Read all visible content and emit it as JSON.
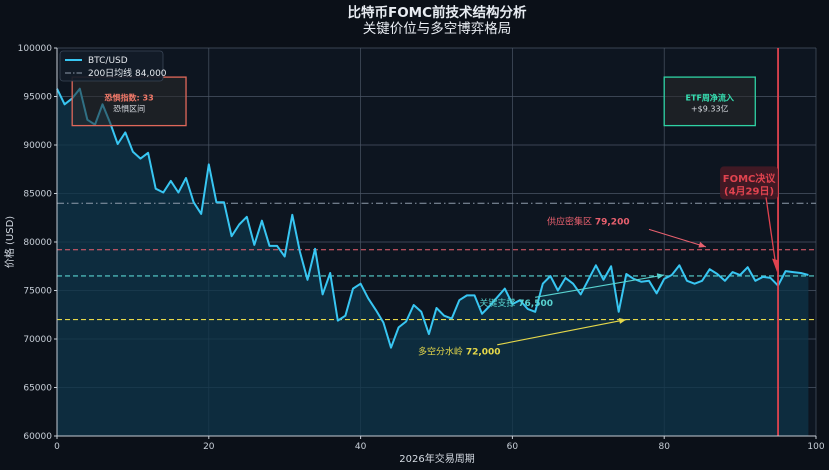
{
  "chart_data": {
    "type": "line",
    "title": "比特币FOMC前技术结构分析",
    "subtitle": "关键价位与多空博弈格局",
    "xlabel": "2026年交易周期",
    "ylabel": "价格 (USD)",
    "xlim": [
      0,
      100
    ],
    "ylim": [
      60000,
      100000
    ],
    "x_ticks": [
      0,
      20,
      40,
      60,
      80,
      100
    ],
    "y_ticks": [
      60000,
      65000,
      70000,
      75000,
      80000,
      85000,
      90000,
      95000,
      100000
    ],
    "grid": true,
    "legend_position": "top-left",
    "series": [
      {
        "name": "BTC/USD",
        "color": "#38c6f2",
        "x": [
          0,
          1,
          2,
          3,
          4,
          5,
          6,
          7,
          8,
          9,
          10,
          11,
          12,
          13,
          14,
          15,
          16,
          17,
          18,
          19,
          20,
          21,
          22,
          23,
          24,
          25,
          26,
          27,
          28,
          29,
          30,
          31,
          32,
          33,
          34,
          35,
          36,
          37,
          38,
          39,
          40,
          41,
          42,
          43,
          44,
          45,
          46,
          47,
          48,
          49,
          50,
          51,
          52,
          53,
          54,
          55,
          56,
          57,
          58,
          59,
          60,
          61,
          62,
          63,
          64,
          65,
          66,
          67,
          68,
          69,
          70,
          71,
          72,
          73,
          74,
          75,
          76,
          77,
          78,
          79,
          80,
          81,
          82,
          83,
          84,
          85,
          86,
          87,
          88,
          89,
          90,
          91,
          92,
          93,
          94,
          95,
          96,
          97,
          98,
          99
        ],
        "values": [
          95800,
          94200,
          94800,
          95800,
          92600,
          92100,
          94200,
          92300,
          90100,
          91300,
          89300,
          88600,
          89200,
          85500,
          85100,
          86300,
          85100,
          86600,
          84100,
          82900,
          88000,
          84100,
          84100,
          80600,
          81800,
          82600,
          79700,
          82200,
          79600,
          79600,
          78500,
          82800,
          79000,
          76100,
          79300,
          74600,
          76800,
          71900,
          72400,
          75200,
          75700,
          74200,
          73000,
          71700,
          69100,
          71200,
          71800,
          73500,
          72800,
          70500,
          73200,
          72400,
          72100,
          74000,
          74500,
          74500,
          72600,
          73400,
          74300,
          75200,
          73600,
          74000,
          73100,
          72800,
          75700,
          76500,
          75000,
          76300,
          75700,
          74600,
          76100,
          77600,
          76100,
          77500,
          72800,
          76700,
          76200,
          75900,
          76000,
          74700,
          76200,
          76600,
          77600,
          76000,
          75700,
          76000,
          77200,
          76700,
          76000,
          76900,
          76600,
          77400,
          76000,
          76400,
          76300,
          75500,
          77000,
          76900,
          76800,
          76600
        ]
      }
    ],
    "ma_200": {
      "label": "200日均线 84,000",
      "value": 84000,
      "color": "#8f9bab"
    },
    "levels": [
      {
        "value": 79200,
        "color": "#e8606e",
        "label": "供应密集区",
        "value_label": "79,200"
      },
      {
        "value": 76500,
        "color": "#58d3d0",
        "label": "关键支撑",
        "value_label": "76,500"
      },
      {
        "value": 72000,
        "color": "#e5d84a",
        "label": "多空分水岭",
        "value_label": "72,000"
      }
    ],
    "fomc": {
      "x": 95,
      "label_line1": "FOMC决议",
      "label_line2": "(4月29日)",
      "color": "#e0434f"
    },
    "boxes": [
      {
        "line1": "恐惧指数: 33",
        "line2": "恐惧区间",
        "border": "#e0685a",
        "line1_color": "#f07868",
        "line2_color": "#d8dce2"
      },
      {
        "line1": "ETF周净流入",
        "line2": "+$9.33亿",
        "border": "#2fd2a4",
        "line1_color": "#36e0b2",
        "line2_color": "#d8dce2"
      }
    ]
  }
}
